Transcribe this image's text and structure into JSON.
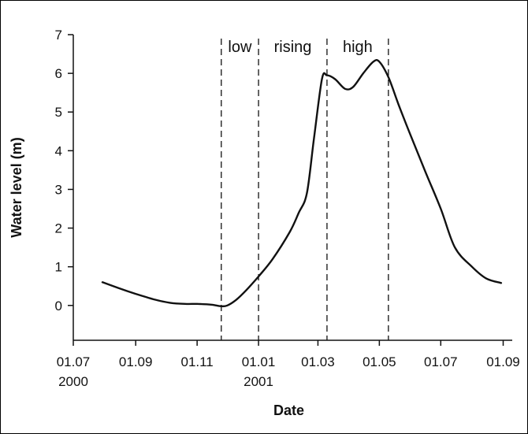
{
  "chart_data": {
    "type": "line",
    "title": "",
    "xlabel": "Date",
    "ylabel": "Water level (m)",
    "ylim": [
      -0.9,
      7
    ],
    "xlim": [
      "2000-07-01",
      "2001-09-10"
    ],
    "grid": false,
    "x_ticks": [
      {
        "date": "2000-07-01",
        "line1": "01.07",
        "line2": "2000"
      },
      {
        "date": "2000-09-01",
        "line1": "01.09",
        "line2": ""
      },
      {
        "date": "2000-11-01",
        "line1": "01.11",
        "line2": ""
      },
      {
        "date": "2001-01-01",
        "line1": "01.01",
        "line2": "2001"
      },
      {
        "date": "2001-03-01",
        "line1": "01.03",
        "line2": ""
      },
      {
        "date": "2001-05-01",
        "line1": "01.05",
        "line2": ""
      },
      {
        "date": "2001-07-01",
        "line1": "01.07",
        "line2": ""
      },
      {
        "date": "2001-09-01",
        "line1": "01.09",
        "line2": ""
      }
    ],
    "y_ticks": [
      0,
      1,
      2,
      3,
      4,
      5,
      6,
      7
    ],
    "phase_boundaries": [
      "2000-11-25",
      "2001-01-01",
      "2001-03-10",
      "2001-05-10"
    ],
    "phases": [
      {
        "label": "low",
        "start": "2000-11-25",
        "end": "2001-01-01"
      },
      {
        "label": "rising",
        "start": "2001-01-01",
        "end": "2001-03-10"
      },
      {
        "label": "high",
        "start": "2001-03-10",
        "end": "2001-05-10"
      }
    ],
    "series": [
      {
        "color": "#111111",
        "x": [
          "2000-07-30",
          "2000-08-15",
          "2000-09-01",
          "2000-09-20",
          "2000-10-05",
          "2000-10-20",
          "2000-11-01",
          "2000-11-15",
          "2000-11-25",
          "2000-12-01",
          "2000-12-10",
          "2000-12-20",
          "2001-01-01",
          "2001-01-15",
          "2001-02-01",
          "2001-02-10",
          "2001-02-18",
          "2001-02-25",
          "2001-03-05",
          "2001-03-10",
          "2001-03-18",
          "2001-03-28",
          "2001-04-05",
          "2001-04-15",
          "2001-04-25",
          "2001-05-01",
          "2001-05-10",
          "2001-05-20",
          "2001-06-01",
          "2001-06-15",
          "2001-07-01",
          "2001-07-15",
          "2001-08-01",
          "2001-08-15",
          "2001-08-30"
        ],
        "values": [
          0.6,
          0.45,
          0.3,
          0.15,
          0.07,
          0.04,
          0.04,
          0.02,
          -0.02,
          0.0,
          0.15,
          0.4,
          0.75,
          1.2,
          1.9,
          2.4,
          2.9,
          4.3,
          5.85,
          5.95,
          5.85,
          5.6,
          5.65,
          6.0,
          6.3,
          6.3,
          5.9,
          5.2,
          4.4,
          3.5,
          2.5,
          1.5,
          1.0,
          0.7,
          0.58
        ]
      }
    ]
  }
}
